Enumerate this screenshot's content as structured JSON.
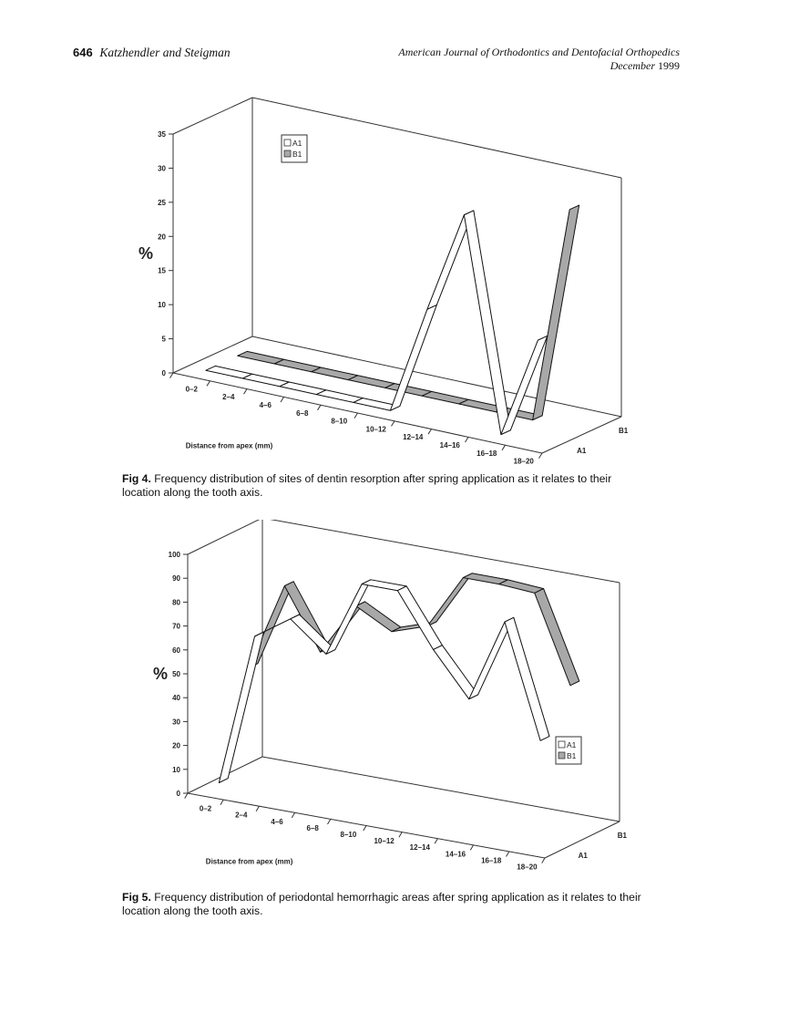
{
  "header": {
    "page_number": "646",
    "authors": "Katzhendler and Steigman",
    "journal": "American Journal of Orthodontics and Dentofacial Orthopedics",
    "month": "December",
    "year": "1999"
  },
  "figures": [
    {
      "label": "Fig 4.",
      "caption": "Frequency distribution of sites of dentin resorption after spring application as it relates to their location along the tooth axis."
    },
    {
      "label": "Fig 5.",
      "caption": "Frequency distribution of periodontal hemorrhagic areas after spring application as it relates to their location along the tooth axis."
    }
  ],
  "chart_data": [
    {
      "type": "line",
      "style": "3d-ribbon",
      "title": "Fig 4",
      "xlabel": "Distance from apex (mm)",
      "ylabel": "%",
      "zlabels": [
        "A1",
        "B1"
      ],
      "categories": [
        "0-2",
        "2-4",
        "4-6",
        "6-8",
        "8-10",
        "10-12",
        "12-14",
        "14-16",
        "16-18",
        "18-20"
      ],
      "yticks": [
        0,
        5,
        10,
        15,
        20,
        25,
        30,
        35
      ],
      "ylim": [
        0,
        35
      ],
      "legend": [
        "A1",
        "B1"
      ],
      "legend_position": "top-left",
      "series": [
        {
          "name": "A1",
          "color": "#ffffff",
          "values": [
            0,
            0,
            0,
            0,
            0,
            0,
            16,
            31,
            0,
            15
          ]
        },
        {
          "name": "B1",
          "color": "#a8a8a8",
          "values": [
            0,
            0,
            0,
            0,
            0,
            0,
            0,
            0,
            0,
            32
          ]
        }
      ],
      "grid": false
    },
    {
      "type": "line",
      "style": "3d-ribbon",
      "title": "Fig 5",
      "xlabel": "Distance from apex (mm)",
      "ylabel": "%",
      "zlabels": [
        "A1",
        "B1"
      ],
      "categories": [
        "0-2",
        "2-4",
        "4-6",
        "6-8",
        "8-10",
        "10-12",
        "12-14",
        "14-16",
        "16-18",
        "18-20"
      ],
      "yticks": [
        0,
        10,
        20,
        30,
        40,
        50,
        60,
        70,
        80,
        90,
        100
      ],
      "ylim": [
        0,
        100
      ],
      "legend": [
        "A1",
        "B1"
      ],
      "legend_position": "bottom-right",
      "series": [
        {
          "name": "A1",
          "color": "#ffffff",
          "values": [
            3,
            67,
            77,
            65,
            97,
            97,
            75,
            57,
            92,
            45
          ]
        },
        {
          "name": "B1",
          "color": "#a8a8a8",
          "values": [
            45,
            82,
            57,
            79,
            71,
            76,
            99,
            99,
            98,
            62
          ]
        }
      ],
      "grid": false
    }
  ]
}
